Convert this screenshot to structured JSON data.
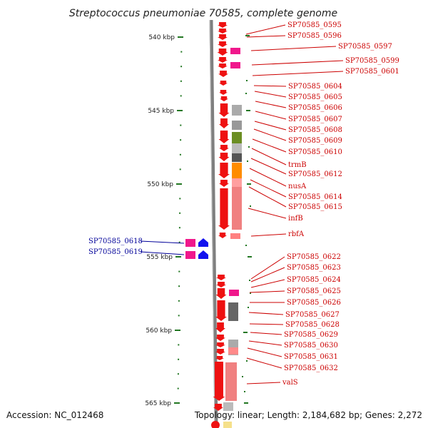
{
  "title": "Streptococcus pneumoniae 70585, complete genome",
  "footer": {
    "accession": "Accession: NC_012468",
    "summary": "Topology: linear; Length: 2,184,682 bp; Genes: 2,272"
  },
  "ruler": {
    "start_kbp": 540,
    "end_kbp": 565,
    "labels": [
      "540 kbp",
      "545 kbp",
      "550 kbp",
      "555 kbp",
      "560 kbp",
      "565 kbp"
    ]
  },
  "colors": {
    "forward_gene": "#ee1111",
    "reverse_gene": "#1111ee",
    "forward_label": "#cc0000",
    "reverse_label": "#000099",
    "tick": "#227722",
    "backbone": "#888888"
  },
  "forward_labels": [
    "SP70585_0595",
    "SP70585_0596",
    "SP70585_0597",
    "SP70585_0599",
    "SP70585_0601",
    "SP70585_0604",
    "SP70585_0605",
    "SP70585_0606",
    "SP70585_0607",
    "SP70585_0608",
    "SP70585_0609",
    "SP70585_0610",
    "trmB",
    "SP70585_0612",
    "nusA",
    "SP70585_0614",
    "SP70585_0615",
    "infB",
    "rbfA",
    "SP70585_0622",
    "SP70585_0623",
    "SP70585_0624",
    "SP70585_0625",
    "SP70585_0626",
    "SP70585_0627",
    "SP70585_0628",
    "SP70585_0629",
    "SP70585_0630",
    "SP70585_0631",
    "SP70585_0632",
    "valS"
  ],
  "reverse_labels": [
    "SP70585_0618",
    "SP70585_0619"
  ]
}
